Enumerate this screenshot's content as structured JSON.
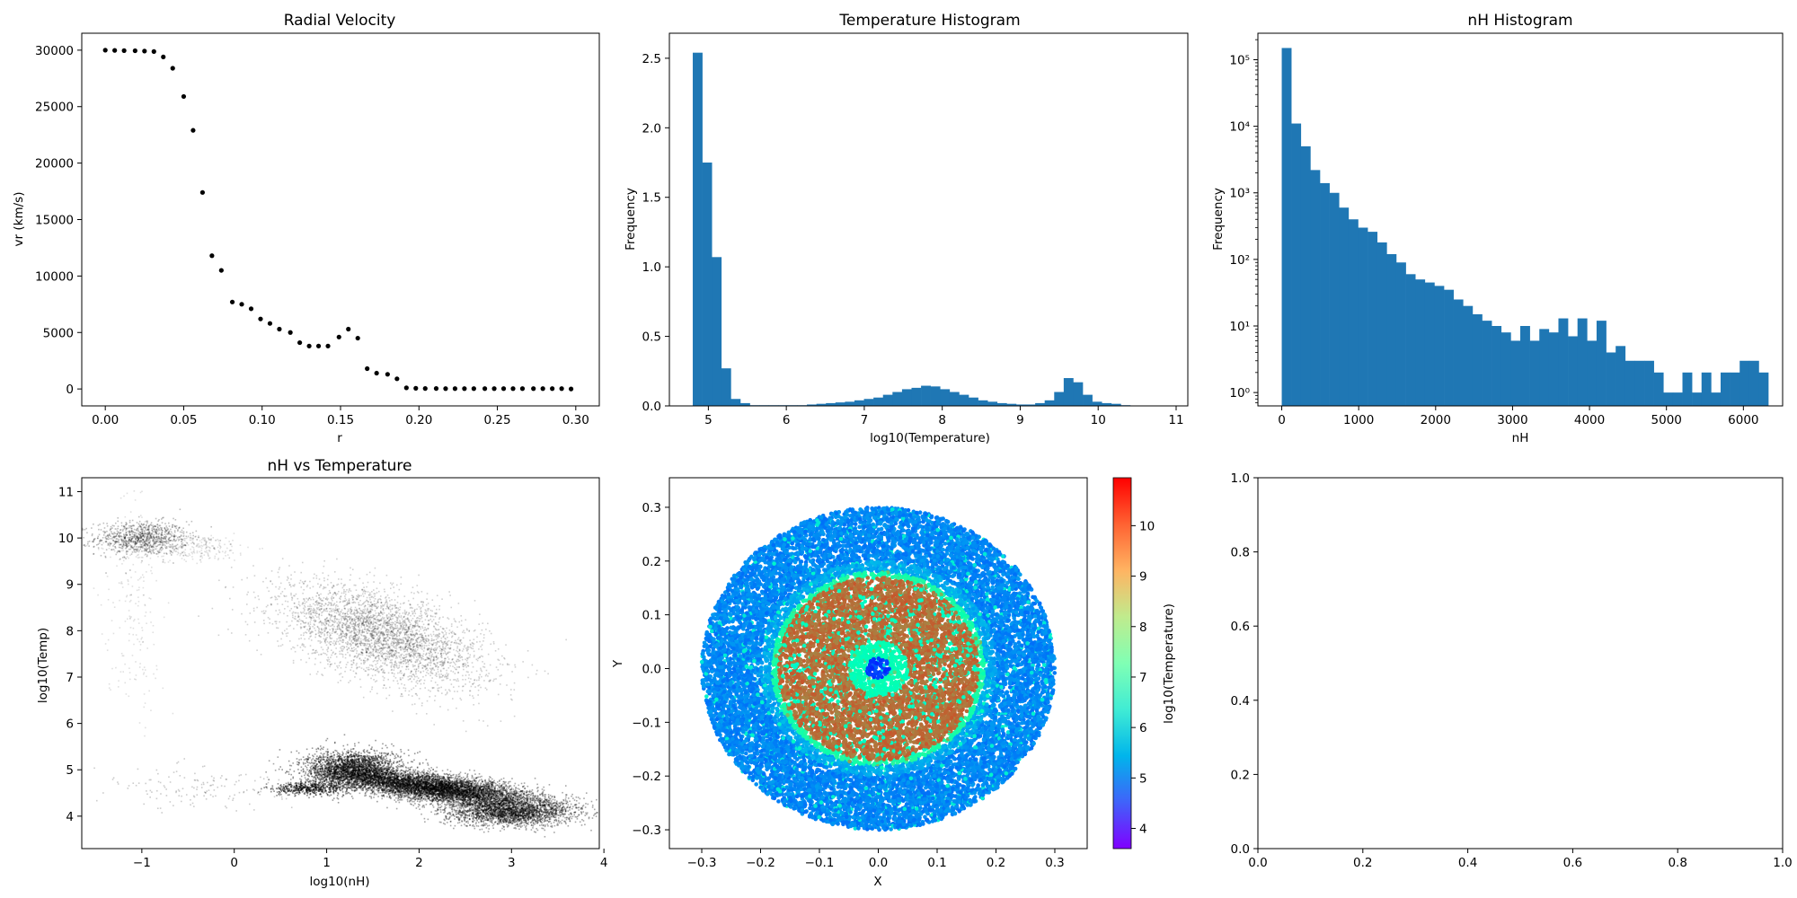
{
  "figure": {
    "background": "#ffffff"
  },
  "chart_data": [
    {
      "id": "radial",
      "type": "scatter",
      "title": "Radial Velocity",
      "xlabel": "r",
      "ylabel": "vr (km/s)",
      "xlim": [
        -0.015,
        0.315
      ],
      "ylim": [
        -1500,
        31500
      ],
      "xticks": [
        0.0,
        0.05,
        0.1,
        0.15,
        0.2,
        0.25,
        0.3
      ],
      "xtick_labels": [
        "0.00",
        "0.05",
        "0.10",
        "0.15",
        "0.20",
        "0.25",
        "0.30"
      ],
      "yticks": [
        0,
        5000,
        10000,
        15000,
        20000,
        25000,
        30000
      ],
      "ytick_labels": [
        "0",
        "5000",
        "10000",
        "15000",
        "20000",
        "25000",
        "30000"
      ],
      "color": "#000000",
      "points": [
        [
          0.0,
          30000
        ],
        [
          0.006,
          29980
        ],
        [
          0.012,
          29960
        ],
        [
          0.019,
          29950
        ],
        [
          0.025,
          29920
        ],
        [
          0.031,
          29880
        ],
        [
          0.037,
          29400
        ],
        [
          0.043,
          28400
        ],
        [
          0.05,
          25900
        ],
        [
          0.056,
          22900
        ],
        [
          0.062,
          17400
        ],
        [
          0.068,
          11800
        ],
        [
          0.074,
          10500
        ],
        [
          0.081,
          7700
        ],
        [
          0.087,
          7500
        ],
        [
          0.093,
          7100
        ],
        [
          0.099,
          6200
        ],
        [
          0.105,
          5800
        ],
        [
          0.111,
          5300
        ],
        [
          0.118,
          5000
        ],
        [
          0.124,
          4100
        ],
        [
          0.13,
          3800
        ],
        [
          0.136,
          3800
        ],
        [
          0.142,
          3800
        ],
        [
          0.149,
          4600
        ],
        [
          0.155,
          5300
        ],
        [
          0.161,
          4500
        ],
        [
          0.167,
          1800
        ],
        [
          0.173,
          1400
        ],
        [
          0.18,
          1300
        ],
        [
          0.186,
          900
        ],
        [
          0.192,
          100
        ],
        [
          0.198,
          60
        ],
        [
          0.204,
          40
        ],
        [
          0.211,
          40
        ],
        [
          0.217,
          30
        ],
        [
          0.223,
          30
        ],
        [
          0.229,
          30
        ],
        [
          0.235,
          30
        ],
        [
          0.242,
          30
        ],
        [
          0.248,
          30
        ],
        [
          0.254,
          30
        ],
        [
          0.26,
          30
        ],
        [
          0.266,
          30
        ],
        [
          0.273,
          30
        ],
        [
          0.279,
          30
        ],
        [
          0.285,
          30
        ],
        [
          0.291,
          30
        ],
        [
          0.297,
          0
        ]
      ]
    },
    {
      "id": "temp_hist",
      "type": "bar",
      "title": "Temperature Histogram",
      "xlabel": "log10(Temperature)",
      "ylabel": "Frequency",
      "xlim": [
        4.5,
        11.15
      ],
      "ylim": [
        0,
        2.68
      ],
      "xticks": [
        5,
        6,
        7,
        8,
        9,
        10,
        11
      ],
      "xtick_labels": [
        "5",
        "6",
        "7",
        "8",
        "9",
        "10",
        "11"
      ],
      "yticks": [
        0,
        0.5,
        1.0,
        1.5,
        2.0,
        2.5
      ],
      "ytick_labels": [
        "0.0",
        "0.5",
        "1.0",
        "1.5",
        "2.0",
        "2.5"
      ],
      "color": "#1f77b4",
      "bin_start": 4.8,
      "bin_width": 0.122,
      "values": [
        2.54,
        1.75,
        1.07,
        0.27,
        0.05,
        0.02,
        0.005,
        0.005,
        0.005,
        0.005,
        0.005,
        0.005,
        0.01,
        0.015,
        0.02,
        0.025,
        0.03,
        0.04,
        0.05,
        0.06,
        0.08,
        0.1,
        0.12,
        0.13,
        0.145,
        0.14,
        0.12,
        0.1,
        0.08,
        0.06,
        0.04,
        0.03,
        0.02,
        0.015,
        0.01,
        0.01,
        0.02,
        0.04,
        0.1,
        0.2,
        0.17,
        0.08,
        0.03,
        0.02,
        0.015,
        0.005,
        0.002,
        0.002,
        0.002,
        0.001
      ]
    },
    {
      "id": "nh_hist",
      "type": "bar",
      "title": "nH Histogram",
      "xlabel": "nH",
      "ylabel": "Frequency",
      "yscale": "log",
      "xlim": [
        -310,
        6510
      ],
      "ylim": [
        0.63,
        250000
      ],
      "xticks": [
        0,
        1000,
        2000,
        3000,
        4000,
        5000,
        6000
      ],
      "xtick_labels": [
        "0",
        "1000",
        "2000",
        "3000",
        "4000",
        "5000",
        "6000"
      ],
      "yticks": [
        1,
        10,
        100,
        1000,
        10000,
        100000
      ],
      "ytick_labels": [
        "10⁰",
        "10¹",
        "10²",
        "10³",
        "10⁴",
        "10⁵"
      ],
      "color": "#1f77b4",
      "bin_start": 0,
      "bin_width": 124,
      "values": [
        150000,
        11000,
        5000,
        2200,
        1400,
        1000,
        600,
        400,
        300,
        260,
        180,
        120,
        90,
        60,
        50,
        45,
        40,
        35,
        25,
        20,
        15,
        12,
        10,
        8,
        6,
        10,
        6,
        9,
        8,
        13,
        7,
        13,
        6,
        12,
        4,
        5,
        3,
        3,
        3,
        2,
        1,
        1,
        2,
        1,
        2,
        1,
        2,
        2,
        3,
        3,
        2
      ]
    },
    {
      "id": "nh_vs_temp",
      "type": "scatter",
      "title": "nH vs Temperature",
      "xlabel": "log10(nH)",
      "ylabel": "log10(Temp)",
      "xlim": [
        -1.65,
        3.95
      ],
      "ylim": [
        3.3,
        11.3
      ],
      "xticks": [
        -1,
        0,
        1,
        2,
        3,
        4
      ],
      "xtick_labels": [
        "−1",
        "0",
        "1",
        "2",
        "3",
        "4"
      ],
      "yticks": [
        4,
        5,
        6,
        7,
        8,
        9,
        10,
        11
      ],
      "ytick_labels": [
        "4",
        "5",
        "6",
        "7",
        "8",
        "9",
        "10",
        "11"
      ],
      "color": "#000000",
      "clusters": [
        {
          "cx": -1.0,
          "cy": 10.0,
          "sx": 0.25,
          "sy": 0.18,
          "n": 900,
          "alpha": 0.25
        },
        {
          "cx": -0.5,
          "cy": 9.8,
          "sx": 0.35,
          "sy": 0.15,
          "n": 300,
          "alpha": 0.12
        },
        {
          "cx": 1.6,
          "cy": 7.9,
          "sx": 0.55,
          "sy": 0.55,
          "n": 3500,
          "alpha": 0.18,
          "corr": -0.55
        },
        {
          "cx": 1.3,
          "cy": 5.0,
          "sx": 0.25,
          "sy": 0.2,
          "n": 2500,
          "alpha": 0.4
        },
        {
          "cx": 2.2,
          "cy": 4.6,
          "sx": 0.5,
          "sy": 0.18,
          "n": 6000,
          "alpha": 0.35,
          "corr": -0.6
        },
        {
          "cx": 3.0,
          "cy": 4.1,
          "sx": 0.35,
          "sy": 0.15,
          "n": 2500,
          "alpha": 0.35
        },
        {
          "cx": 0.8,
          "cy": 4.6,
          "sx": 0.2,
          "sy": 0.07,
          "n": 500,
          "alpha": 0.45
        },
        {
          "cx": -1.1,
          "cy": 8.5,
          "sx": 0.15,
          "sy": 1.2,
          "n": 200,
          "alpha": 0.12
        },
        {
          "cx": -0.4,
          "cy": 4.6,
          "sx": 0.5,
          "sy": 0.25,
          "n": 150,
          "alpha": 0.2
        }
      ]
    },
    {
      "id": "xy_map",
      "type": "scatter",
      "xlabel": "X",
      "ylabel": "Y",
      "xlim": [
        -0.355,
        0.355
      ],
      "ylim": [
        -0.335,
        0.355
      ],
      "xticks": [
        -0.3,
        -0.2,
        -0.1,
        0.0,
        0.1,
        0.2,
        0.3
      ],
      "xtick_labels": [
        "−0.3",
        "−0.2",
        "−0.1",
        "0.0",
        "0.1",
        "0.2",
        "0.3"
      ],
      "yticks": [
        -0.3,
        -0.2,
        -0.1,
        0.0,
        0.1,
        0.2,
        0.3
      ],
      "ytick_labels": [
        "−0.3",
        "−0.2",
        "−0.1",
        "0.0",
        "0.1",
        "0.2",
        "0.3"
      ],
      "colorbar": {
        "label": "log10(Temperature)",
        "range": [
          3.6,
          10.95
        ],
        "ticks": [
          4,
          5,
          6,
          7,
          8,
          9,
          10
        ],
        "tick_labels": [
          "4",
          "5",
          "6",
          "7",
          "8",
          "9",
          "10"
        ],
        "cmap": "rainbow"
      },
      "rings": [
        {
          "r_in": 0.2,
          "r_out": 0.3,
          "value": 4.9
        },
        {
          "r_in": 0.18,
          "r_out": 0.2,
          "value": 5.3
        },
        {
          "r_in": 0.17,
          "r_out": 0.18,
          "value": 7.6
        },
        {
          "r_in": 0.05,
          "r_out": 0.17,
          "value": 9.9
        },
        {
          "r_in": 0.02,
          "r_out": 0.05,
          "value": 7.2
        },
        {
          "r_in": 0.0,
          "r_out": 0.02,
          "value": 4.2
        }
      ]
    },
    {
      "id": "empty",
      "type": "scatter",
      "xlim": [
        0,
        1
      ],
      "ylim": [
        0,
        1
      ],
      "xticks": [
        0,
        0.2,
        0.4,
        0.6,
        0.8,
        1.0
      ],
      "xtick_labels": [
        "0.0",
        "0.2",
        "0.4",
        "0.6",
        "0.8",
        "1.0"
      ],
      "yticks": [
        0,
        0.2,
        0.4,
        0.6,
        0.8,
        1.0
      ],
      "ytick_labels": [
        "0.0",
        "0.2",
        "0.4",
        "0.6",
        "0.8",
        "1.0"
      ]
    }
  ]
}
